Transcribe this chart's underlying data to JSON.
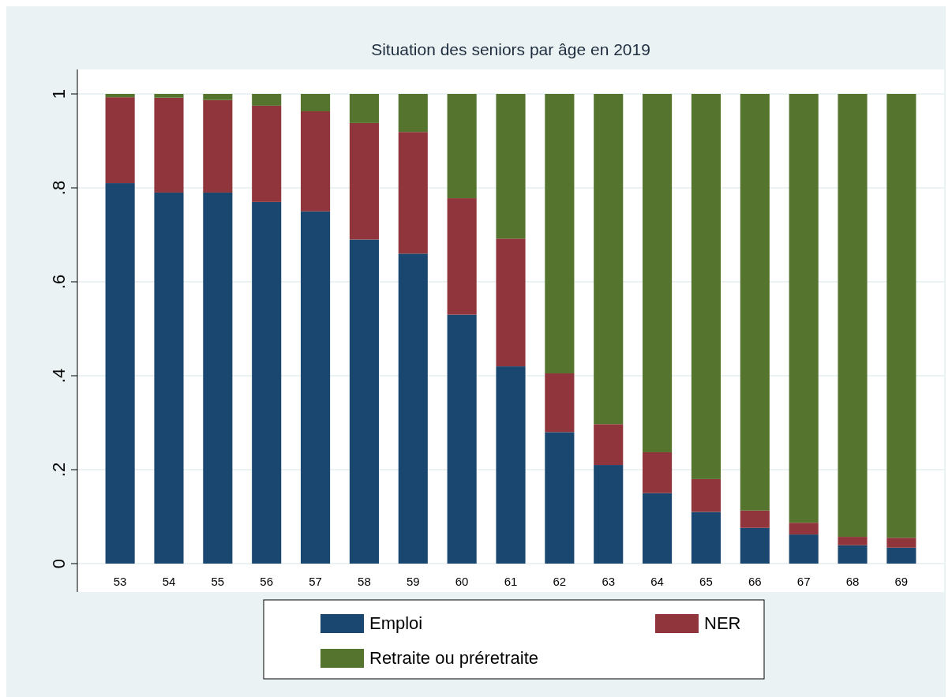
{
  "chart_data": {
    "type": "bar",
    "stacked": true,
    "title": "Situation des seniors par âge en 2019",
    "categories": [
      "53",
      "54",
      "55",
      "56",
      "57",
      "58",
      "59",
      "60",
      "61",
      "62",
      "63",
      "64",
      "65",
      "66",
      "67",
      "68",
      "69"
    ],
    "series": [
      {
        "name": "Emploi",
        "color": "#1a476f",
        "values": [
          0.81,
          0.79,
          0.79,
          0.77,
          0.75,
          0.69,
          0.66,
          0.53,
          0.42,
          0.28,
          0.21,
          0.15,
          0.11,
          0.076,
          0.062,
          0.039,
          0.034
        ]
      },
      {
        "name": "NER",
        "color": "#90353b",
        "values": [
          0.183,
          0.202,
          0.197,
          0.205,
          0.213,
          0.248,
          0.259,
          0.248,
          0.272,
          0.125,
          0.087,
          0.087,
          0.07,
          0.037,
          0.025,
          0.018,
          0.021
        ]
      },
      {
        "name": "Retraite ou préretraite",
        "color": "#55752f",
        "values": [
          0.007,
          0.008,
          0.013,
          0.025,
          0.037,
          0.062,
          0.081,
          0.222,
          0.308,
          0.595,
          0.703,
          0.763,
          0.82,
          0.887,
          0.913,
          0.943,
          0.945
        ]
      }
    ],
    "ylim": [
      0,
      1
    ],
    "yticks": [
      {
        "value": 0,
        "label": "0"
      },
      {
        "value": 0.2,
        "label": ".2"
      },
      {
        "value": 0.4,
        "label": ".4"
      },
      {
        "value": 0.6,
        "label": ".6"
      },
      {
        "value": 0.8,
        "label": ".8"
      },
      {
        "value": 1,
        "label": "1"
      }
    ],
    "grid": "y",
    "legend": "bottom"
  }
}
